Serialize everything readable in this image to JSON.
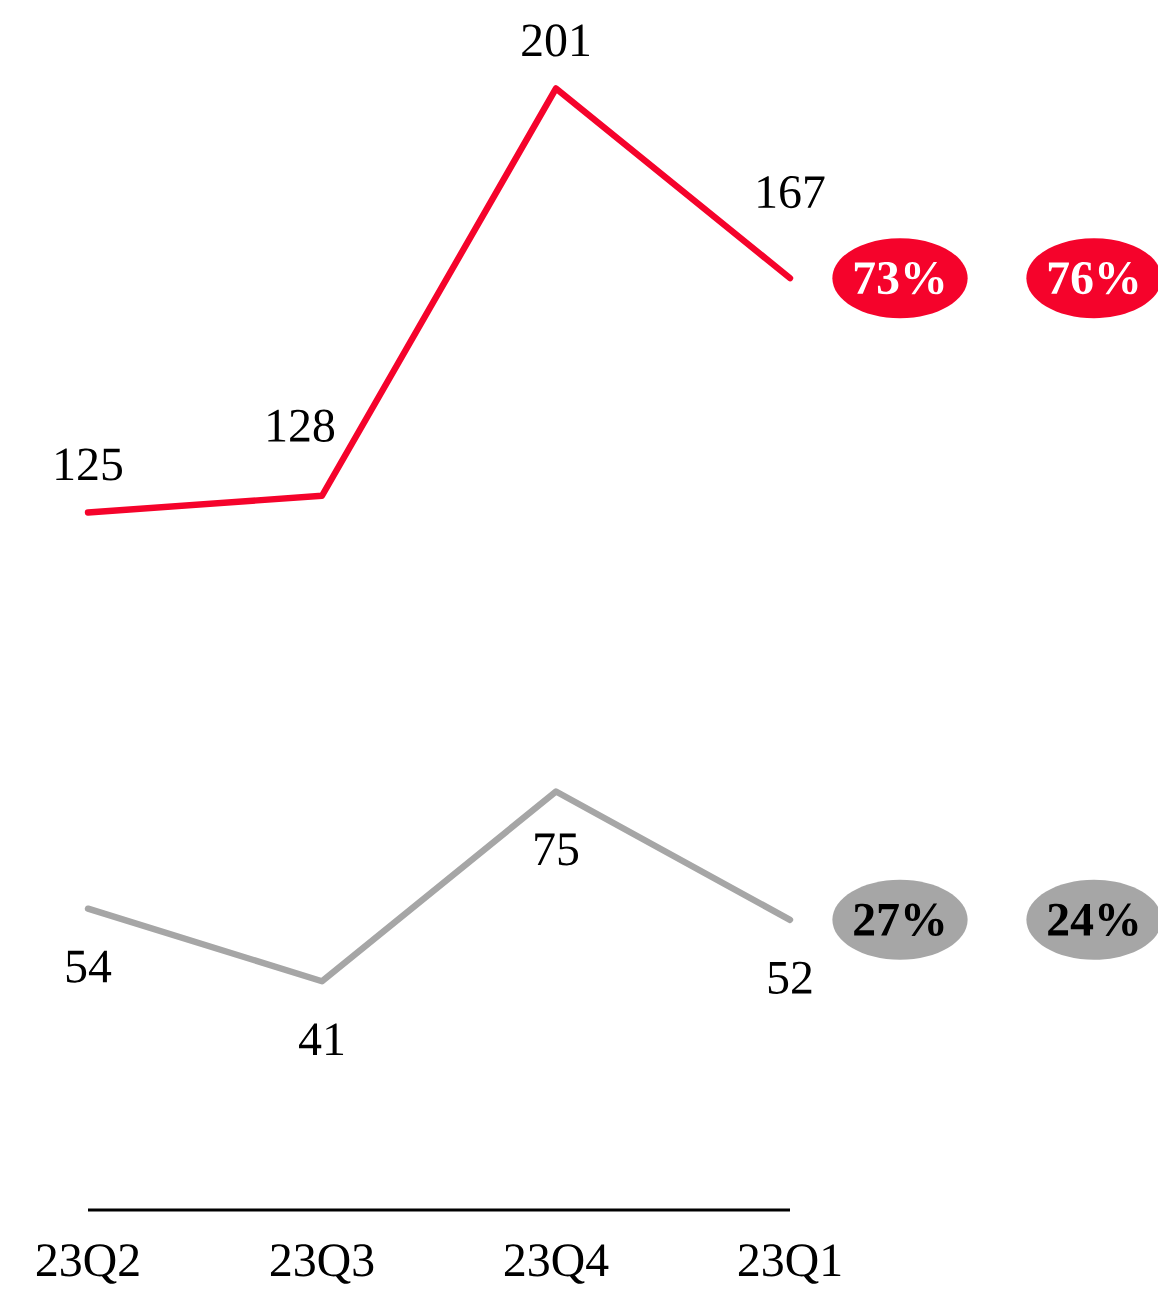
{
  "chart_data": {
    "type": "line",
    "categories": [
      "23Q2",
      "23Q3",
      "23Q4",
      "23Q1"
    ],
    "series": [
      {
        "color": "#f5032b",
        "values": [
          125,
          128,
          201,
          167
        ]
      },
      {
        "color": "#a6a6a6",
        "values": [
          54,
          41,
          75,
          52
        ]
      }
    ],
    "data_labels": true,
    "tick_labels": "x",
    "annotations": [
      "73%",
      "76%",
      "27%",
      "24%"
    ]
  }
}
